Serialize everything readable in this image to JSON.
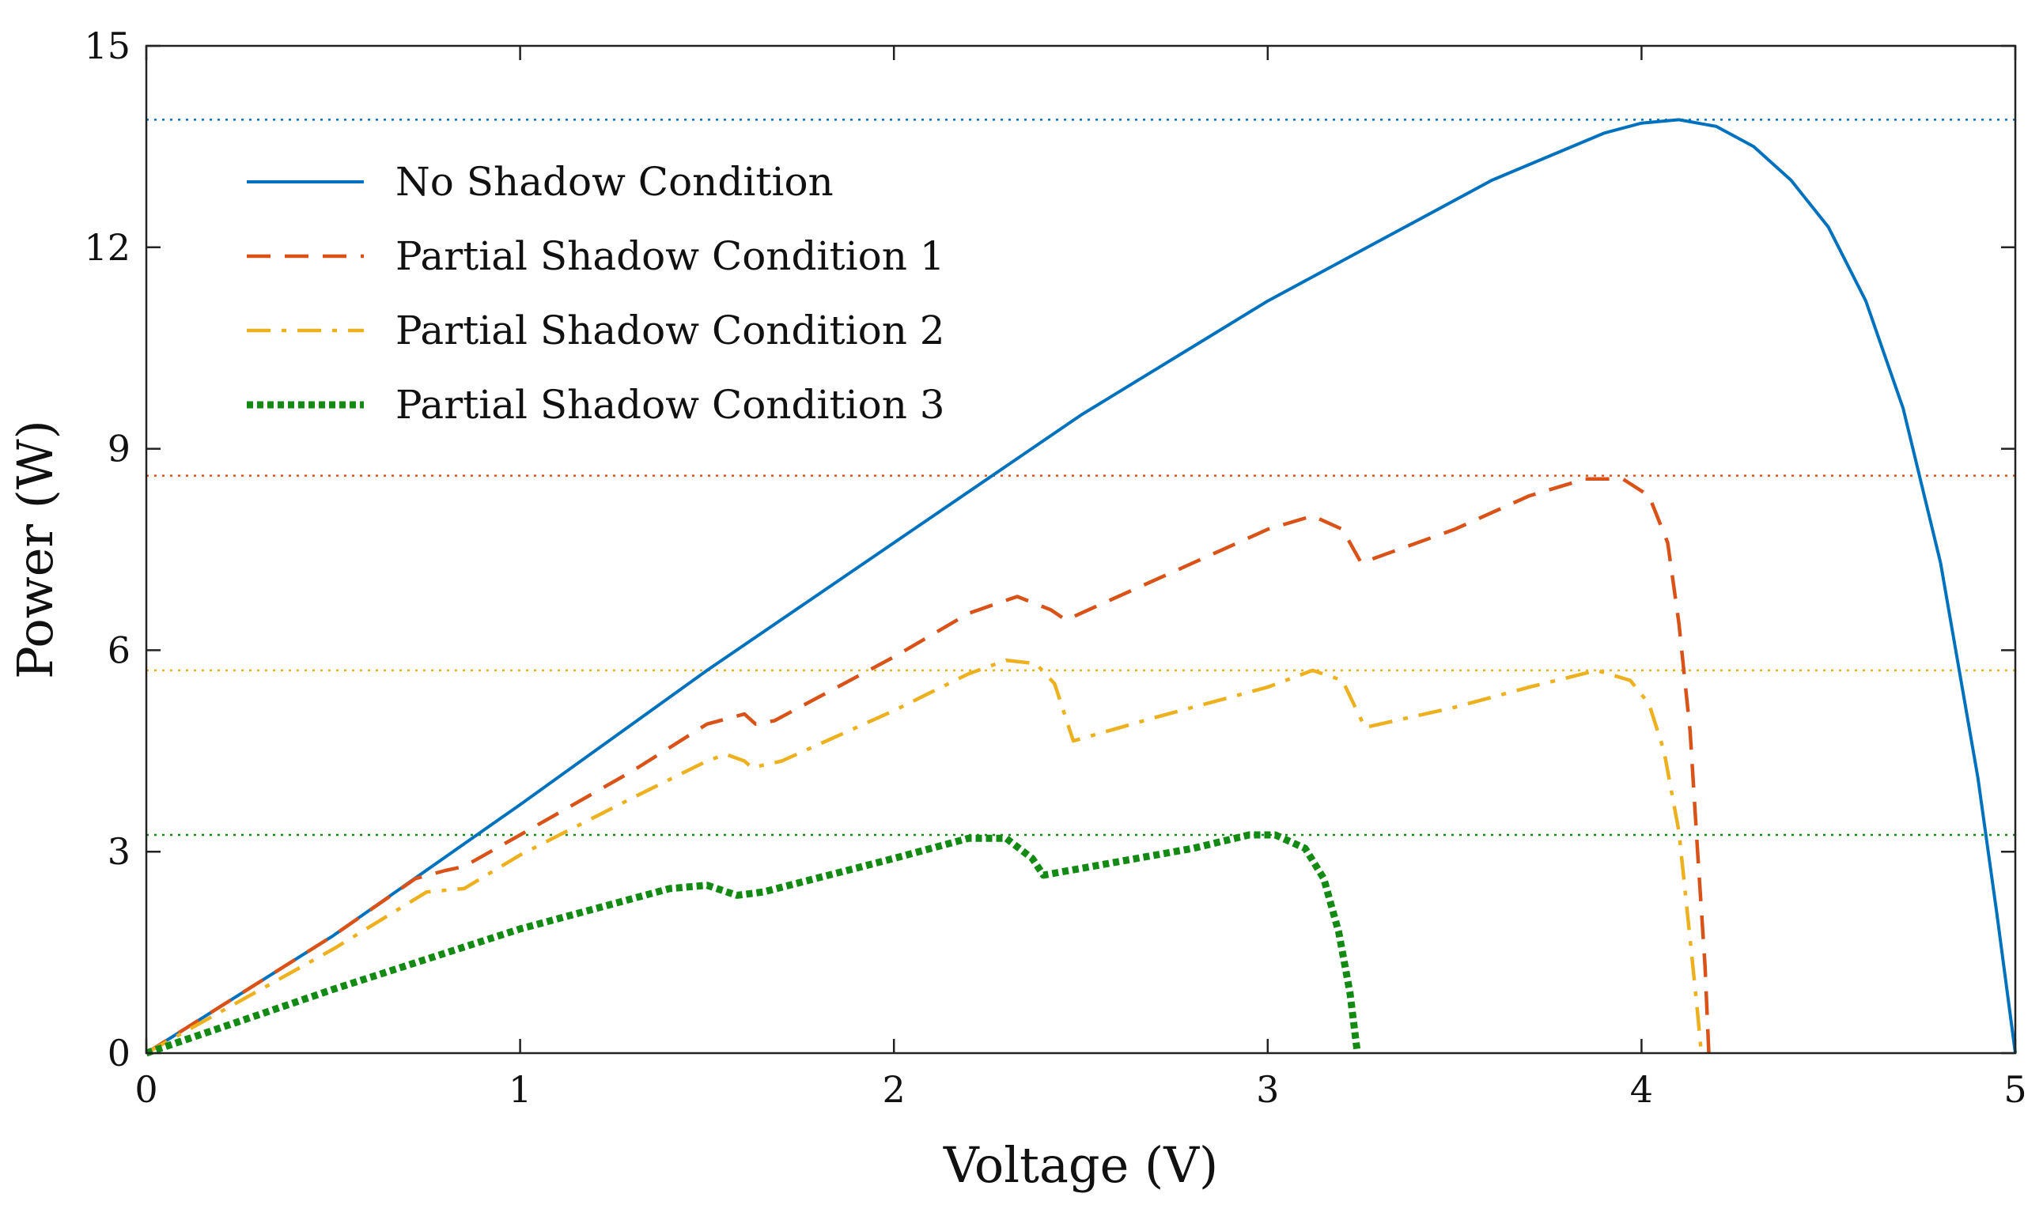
{
  "chart_data": {
    "type": "line",
    "title": "",
    "xlabel": "Voltage (V)",
    "ylabel": "Power (W)",
    "xlim": [
      0,
      5
    ],
    "ylim": [
      0,
      15
    ],
    "xticks": [
      0,
      1,
      2,
      3,
      4,
      5
    ],
    "yticks": [
      0,
      3,
      6,
      9,
      12,
      15
    ],
    "grid": false,
    "legend_position": "upper-left",
    "reference_lines": [
      {
        "y": 13.9,
        "color": "#0072BD",
        "style": "dotted"
      },
      {
        "y": 8.6,
        "color": "#D95319",
        "style": "dotted"
      },
      {
        "y": 5.7,
        "color": "#EDB120",
        "style": "dotted"
      },
      {
        "y": 3.25,
        "color": "#138A13",
        "style": "dotted"
      }
    ],
    "series": [
      {
        "name": "No Shadow Condition",
        "color": "#0072BD",
        "style": "solid",
        "points": [
          [
            0,
            0
          ],
          [
            0.5,
            1.75
          ],
          [
            1,
            3.7
          ],
          [
            1.5,
            5.7
          ],
          [
            2,
            7.6
          ],
          [
            2.5,
            9.5
          ],
          [
            3,
            11.2
          ],
          [
            3.3,
            12.1
          ],
          [
            3.6,
            13.0
          ],
          [
            3.9,
            13.7
          ],
          [
            4.0,
            13.85
          ],
          [
            4.1,
            13.9
          ],
          [
            4.2,
            13.8
          ],
          [
            4.3,
            13.5
          ],
          [
            4.4,
            13.0
          ],
          [
            4.5,
            12.3
          ],
          [
            4.6,
            11.2
          ],
          [
            4.7,
            9.6
          ],
          [
            4.8,
            7.3
          ],
          [
            4.9,
            4.1
          ],
          [
            4.95,
            2.1
          ],
          [
            5.0,
            0
          ]
        ]
      },
      {
        "name": "Partial Shadow Condition 1",
        "color": "#D95319",
        "style": "dashed",
        "points": [
          [
            0,
            0
          ],
          [
            0.5,
            1.75
          ],
          [
            0.72,
            2.6
          ],
          [
            0.8,
            2.72
          ],
          [
            0.85,
            2.78
          ],
          [
            1.0,
            3.25
          ],
          [
            1.3,
            4.2
          ],
          [
            1.5,
            4.9
          ],
          [
            1.6,
            5.05
          ],
          [
            1.63,
            4.9
          ],
          [
            1.68,
            4.95
          ],
          [
            2.0,
            5.9
          ],
          [
            2.2,
            6.55
          ],
          [
            2.33,
            6.8
          ],
          [
            2.42,
            6.6
          ],
          [
            2.46,
            6.45
          ],
          [
            2.8,
            7.3
          ],
          [
            3.0,
            7.8
          ],
          [
            3.12,
            8.0
          ],
          [
            3.2,
            7.8
          ],
          [
            3.25,
            7.3
          ],
          [
            3.5,
            7.8
          ],
          [
            3.7,
            8.3
          ],
          [
            3.85,
            8.55
          ],
          [
            3.95,
            8.55
          ],
          [
            4.02,
            8.3
          ],
          [
            4.07,
            7.6
          ],
          [
            4.1,
            6.4
          ],
          [
            4.13,
            4.8
          ],
          [
            4.15,
            3.0
          ],
          [
            4.17,
            1.3
          ],
          [
            4.18,
            0
          ]
        ]
      },
      {
        "name": "Partial Shadow Condition 2",
        "color": "#EDB120",
        "style": "dashdot",
        "points": [
          [
            0,
            0
          ],
          [
            0.5,
            1.55
          ],
          [
            0.75,
            2.4
          ],
          [
            0.85,
            2.45
          ],
          [
            1.0,
            2.95
          ],
          [
            1.3,
            3.8
          ],
          [
            1.5,
            4.35
          ],
          [
            1.55,
            4.45
          ],
          [
            1.6,
            4.35
          ],
          [
            1.62,
            4.25
          ],
          [
            1.7,
            4.35
          ],
          [
            2.0,
            5.1
          ],
          [
            2.2,
            5.65
          ],
          [
            2.3,
            5.85
          ],
          [
            2.38,
            5.8
          ],
          [
            2.43,
            5.5
          ],
          [
            2.48,
            4.65
          ],
          [
            2.7,
            5.0
          ],
          [
            3.0,
            5.45
          ],
          [
            3.12,
            5.7
          ],
          [
            3.2,
            5.55
          ],
          [
            3.26,
            4.85
          ],
          [
            3.5,
            5.15
          ],
          [
            3.7,
            5.45
          ],
          [
            3.88,
            5.7
          ],
          [
            3.97,
            5.55
          ],
          [
            4.02,
            5.2
          ],
          [
            4.06,
            4.5
          ],
          [
            4.1,
            3.3
          ],
          [
            4.13,
            1.7
          ],
          [
            4.15,
            0.6
          ],
          [
            4.16,
            0
          ]
        ]
      },
      {
        "name": "Partial Shadow Condition 3",
        "color": "#138A13",
        "style": "dotted",
        "points": [
          [
            0,
            0
          ],
          [
            0.5,
            0.95
          ],
          [
            1.0,
            1.85
          ],
          [
            1.4,
            2.45
          ],
          [
            1.5,
            2.5
          ],
          [
            1.58,
            2.35
          ],
          [
            1.65,
            2.4
          ],
          [
            2.0,
            2.9
          ],
          [
            2.2,
            3.2
          ],
          [
            2.3,
            3.2
          ],
          [
            2.37,
            2.9
          ],
          [
            2.4,
            2.65
          ],
          [
            2.6,
            2.85
          ],
          [
            2.8,
            3.05
          ],
          [
            2.95,
            3.25
          ],
          [
            3.02,
            3.25
          ],
          [
            3.1,
            3.05
          ],
          [
            3.15,
            2.6
          ],
          [
            3.19,
            1.8
          ],
          [
            3.22,
            0.9
          ],
          [
            3.24,
            0
          ]
        ]
      }
    ]
  }
}
